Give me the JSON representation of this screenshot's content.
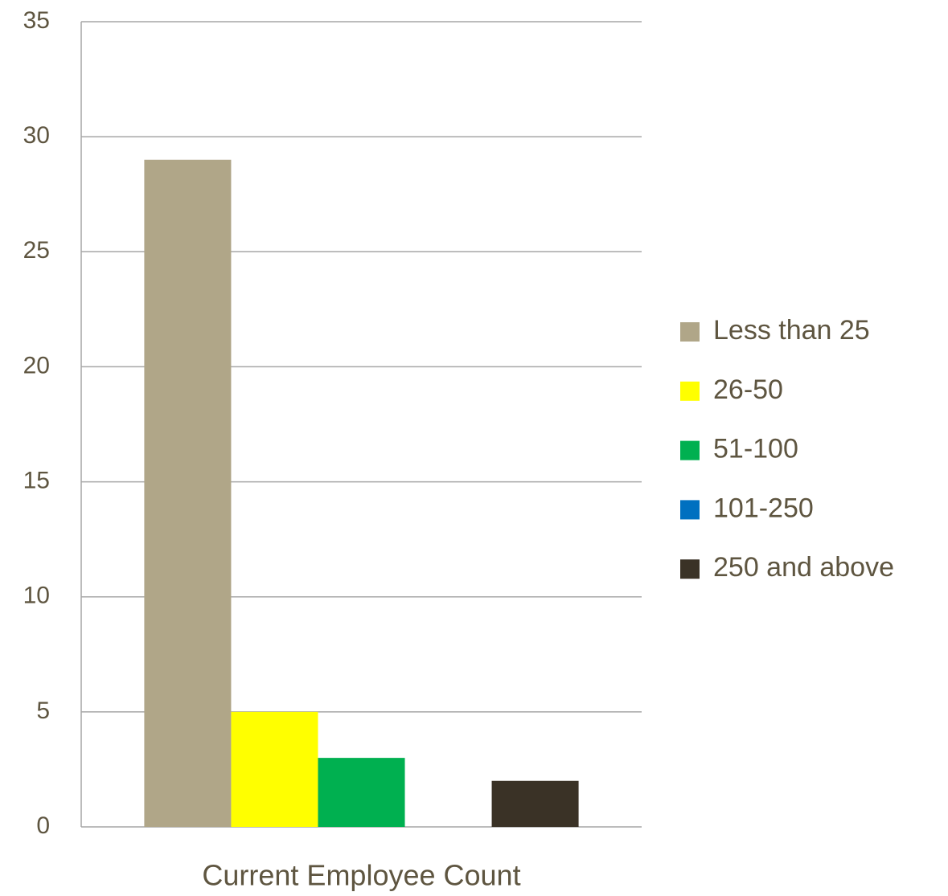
{
  "chart_data": {
    "type": "bar",
    "categories": [
      "Current Employee Count"
    ],
    "series": [
      {
        "name": "Less than 25",
        "color": "#b0a688",
        "values": [
          29
        ]
      },
      {
        "name": "26-50",
        "color": "#ffff00",
        "values": [
          5
        ]
      },
      {
        "name": "51-100",
        "color": "#00b050",
        "values": [
          3
        ]
      },
      {
        "name": "101-250",
        "color": "#0070c0",
        "values": [
          0
        ]
      },
      {
        "name": "250 and above",
        "color": "#3a3226",
        "values": [
          2
        ]
      }
    ],
    "ylim": [
      0,
      35
    ],
    "yticks": [
      0,
      5,
      10,
      15,
      20,
      25,
      30,
      35
    ],
    "grid": true,
    "legend": "right"
  }
}
